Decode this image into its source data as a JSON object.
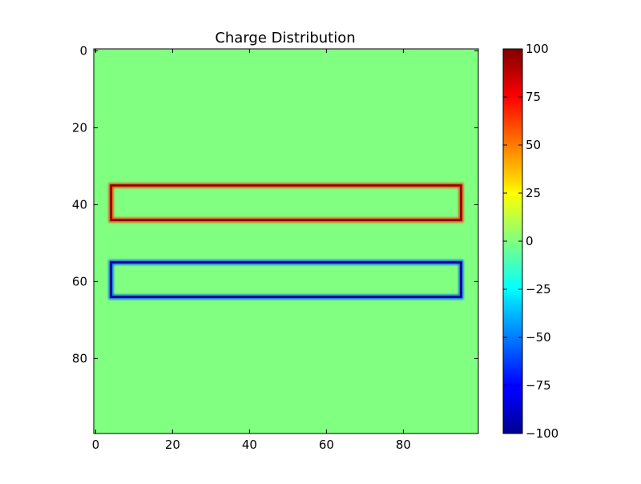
{
  "chart_data": {
    "type": "heatmap",
    "title": "Charge Distribution",
    "xlabel": "",
    "ylabel": "",
    "grid": false,
    "image_size": [
      100,
      100
    ],
    "xlim": [
      -0.5,
      99.5
    ],
    "ylim": [
      99.5,
      -0.5
    ],
    "x_ticks": [
      0,
      20,
      40,
      60,
      80
    ],
    "y_ticks": [
      0,
      20,
      40,
      60,
      80
    ],
    "background_value": 0,
    "colormap": "jet",
    "colorbar": {
      "range": [
        -100,
        100
      ],
      "ticks": [
        100,
        75,
        50,
        25,
        0,
        -25,
        -50,
        -75,
        -100
      ],
      "tick_labels": [
        "100",
        "75",
        "50",
        "25",
        "0",
        "−25",
        "−50",
        "−75",
        "−100"
      ]
    },
    "features": [
      {
        "shape": "rectangle-outline",
        "value": 100,
        "x_range": [
          4,
          95
        ],
        "y_range": [
          35,
          44
        ],
        "edge_color": "#8b0000"
      },
      {
        "shape": "rectangle-outline",
        "value": -100,
        "x_range": [
          4,
          95
        ],
        "y_range": [
          55,
          64
        ],
        "edge_color": "#00008b"
      }
    ],
    "colors": {
      "background": "#80ff80",
      "positive_edge": "#8b0000",
      "positive_glow": "#ff3300",
      "negative_edge": "#00008b",
      "negative_glow": "#0055ff"
    }
  }
}
